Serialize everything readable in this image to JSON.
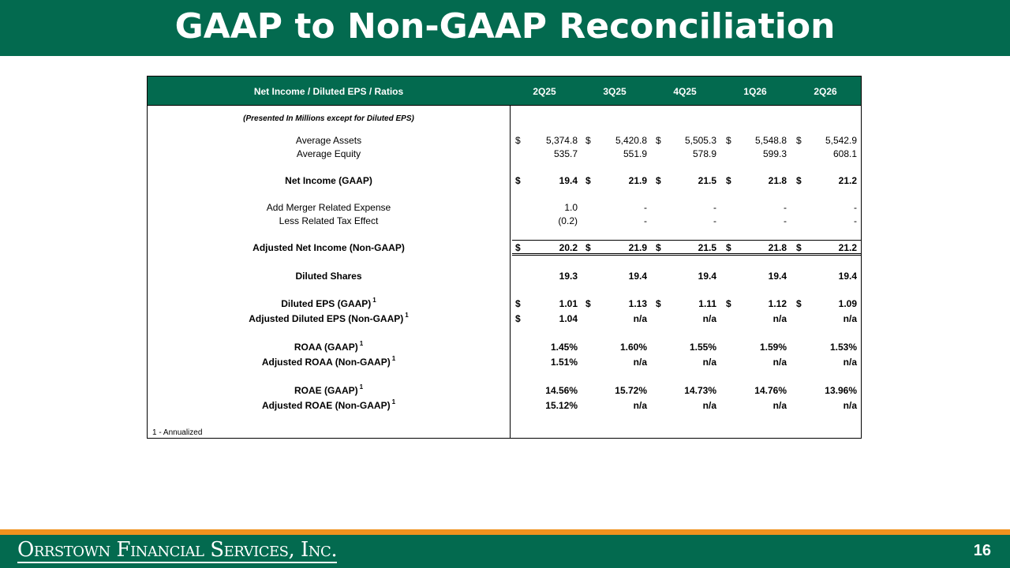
{
  "title": "GAAP to Non-GAAP Reconciliation",
  "table": {
    "header_label": "Net Income / Diluted EPS / Ratios",
    "columns": [
      "2Q25",
      "3Q25",
      "4Q25",
      "1Q26",
      "2Q26"
    ],
    "subtitle": "(Presented In Millions except for Diluted EPS)",
    "rows": [
      {
        "label": "Average Assets",
        "cur": [
          "$",
          "$",
          "$",
          "$",
          "$"
        ],
        "values": [
          "5,374.8",
          "5,420.8",
          "5,505.3",
          "5,548.8",
          "5,542.9"
        ]
      },
      {
        "label": "Average Equity",
        "cur": [
          "",
          "",
          "",
          "",
          ""
        ],
        "values": [
          "535.7",
          "551.9",
          "578.9",
          "599.3",
          "608.1"
        ]
      },
      {
        "label": "Net Income (GAAP)",
        "cur": [
          "$",
          "$",
          "$",
          "$",
          "$"
        ],
        "values": [
          "19.4",
          "21.9",
          "21.5",
          "21.8",
          "21.2"
        ]
      },
      {
        "label": "Add Merger Related Expense",
        "cur": [
          "",
          "",
          "",
          "",
          ""
        ],
        "values": [
          "1.0",
          "-",
          "-",
          "-",
          "-"
        ]
      },
      {
        "label": "Less Related Tax Effect",
        "cur": [
          "",
          "",
          "",
          "",
          ""
        ],
        "values": [
          "(0.2)",
          "-",
          "-",
          "-",
          "-"
        ]
      },
      {
        "label": "Adjusted Net Income (Non-GAAP)",
        "cur": [
          "$",
          "$",
          "$",
          "$",
          "$"
        ],
        "values": [
          "20.2",
          "21.9",
          "21.5",
          "21.8",
          "21.2"
        ]
      },
      {
        "label": "Diluted Shares",
        "cur": [
          "",
          "",
          "",
          "",
          ""
        ],
        "values": [
          "19.3",
          "19.4",
          "19.4",
          "19.4",
          "19.4"
        ]
      },
      {
        "label": "Diluted EPS (GAAP)",
        "sup": "1",
        "cur": [
          "$",
          "$",
          "$",
          "$",
          "$"
        ],
        "values": [
          "1.01",
          "1.13",
          "1.11",
          "1.12",
          "1.09"
        ]
      },
      {
        "label": "Adjusted Diluted EPS (Non-GAAP)",
        "sup": "1",
        "cur": [
          "$",
          "",
          "",
          "",
          ""
        ],
        "values": [
          "1.04",
          "n/a",
          "n/a",
          "n/a",
          "n/a"
        ]
      },
      {
        "label": "ROAA (GAAP)",
        "sup": "1",
        "cur": [
          "",
          "",
          "",
          "",
          ""
        ],
        "values": [
          "1.45%",
          "1.60%",
          "1.55%",
          "1.59%",
          "1.53%"
        ]
      },
      {
        "label": "Adjusted ROAA (Non-GAAP)",
        "sup": "1",
        "cur": [
          "",
          "",
          "",
          "",
          ""
        ],
        "values": [
          "1.51%",
          "n/a",
          "n/a",
          "n/a",
          "n/a"
        ]
      },
      {
        "label": "ROAE (GAAP)",
        "sup": "1",
        "cur": [
          "",
          "",
          "",
          "",
          ""
        ],
        "values": [
          "14.56%",
          "15.72%",
          "14.73%",
          "14.76%",
          "13.96%"
        ]
      },
      {
        "label": "Adjusted ROAE (Non-GAAP)",
        "sup": "1",
        "cur": [
          "",
          "",
          "",
          "",
          ""
        ],
        "values": [
          "15.12%",
          "n/a",
          "n/a",
          "n/a",
          "n/a"
        ]
      }
    ],
    "footnote": "1 - Annualized"
  },
  "footer": {
    "company": "Orrstown Financial Services, Inc.",
    "page_number": "16"
  },
  "colors": {
    "brand_green": "#036a4f",
    "accent_orange": "#f0921e"
  }
}
